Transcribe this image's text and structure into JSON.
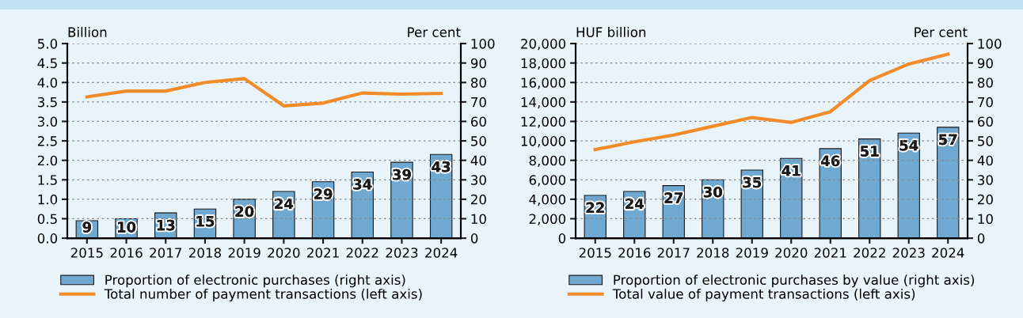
{
  "chart_data": [
    {
      "type": "bar",
      "ylabel": "Billion",
      "y2label": "Per cent",
      "categories": [
        "2015",
        "2016",
        "2017",
        "2018",
        "2019",
        "2020",
        "2021",
        "2022",
        "2023",
        "2024"
      ],
      "series": [
        {
          "name": "Proportion of electronic purchases (right axis)",
          "axis": "y2",
          "color": "#6fa8d0",
          "values": [
            9,
            10,
            13,
            15,
            20,
            24,
            29,
            34,
            39,
            43
          ],
          "value_labels": [
            "9",
            "10",
            "13",
            "15",
            "20",
            "24",
            "29",
            "34",
            "39",
            "43"
          ]
        },
        {
          "name": "Total number of payment transactions (left axis)",
          "type": "line",
          "color": "#f28c28",
          "values": [
            3.63,
            3.78,
            3.78,
            4.0,
            4.1,
            3.4,
            3.47,
            3.73,
            3.7,
            3.72
          ]
        }
      ],
      "ylim": [
        0,
        5
      ],
      "yticks": [
        {
          "value": 0,
          "label": "0.0"
        },
        0.5,
        {
          "value": 1,
          "label": "1.0"
        },
        1.5,
        {
          "value": 2,
          "label": "2.0"
        },
        2.5,
        {
          "value": 3,
          "label": "3.0"
        },
        3.5,
        {
          "value": 4,
          "label": "4.0"
        },
        4.5,
        {
          "value": 5,
          "label": "5.0"
        }
      ],
      "y2lim": [
        0,
        100
      ],
      "y2ticks": [
        0,
        10,
        20,
        30,
        40,
        50,
        60,
        70,
        80,
        90,
        100
      ],
      "grid": "y",
      "legend": "bottom",
      "marker": "none",
      "line_style": "solid"
    },
    {
      "type": "bar",
      "ylabel": "HUF billion",
      "y2label": "Per cent",
      "categories": [
        "2015",
        "2016",
        "2017",
        "2018",
        "2019",
        "2020",
        "2021",
        "2022",
        "2023",
        "2024"
      ],
      "series": [
        {
          "name": "Proportion of electronic purchases by value (right axis)",
          "axis": "y2",
          "color": "#6fa8d0",
          "values": [
            22,
            24,
            27,
            30,
            35,
            41,
            46,
            51,
            54,
            57
          ],
          "value_labels": [
            "22",
            "24",
            "27",
            "30",
            "35",
            "41",
            "46",
            "51",
            "54",
            "57"
          ]
        },
        {
          "name": "Total value of payment transactions (left axis)",
          "type": "line",
          "color": "#f28c28",
          "values": [
            9100,
            9900,
            10600,
            11500,
            12400,
            11900,
            13000,
            16200,
            17900,
            18900
          ]
        }
      ],
      "ylim": [
        0,
        20000
      ],
      "yticks": [
        0,
        {
          "value": 2000,
          "label": "2,000"
        },
        {
          "value": 4000,
          "label": "4,000"
        },
        {
          "value": 6000,
          "label": "6,000"
        },
        {
          "value": 8000,
          "label": "8,000"
        },
        {
          "value": 10000,
          "label": "10,000"
        },
        {
          "value": 12000,
          "label": "12,000"
        },
        {
          "value": 14000,
          "label": "14,000"
        },
        {
          "value": 16000,
          "label": "16,000"
        },
        {
          "value": 18000,
          "label": "18,000"
        },
        {
          "value": 20000,
          "label": "20,000"
        }
      ],
      "y2lim": [
        0,
        100
      ],
      "y2ticks": [
        0,
        10,
        20,
        30,
        40,
        50,
        60,
        70,
        80,
        90,
        100
      ],
      "grid": "y",
      "legend": "bottom",
      "marker": "none",
      "line_style": "solid"
    }
  ]
}
